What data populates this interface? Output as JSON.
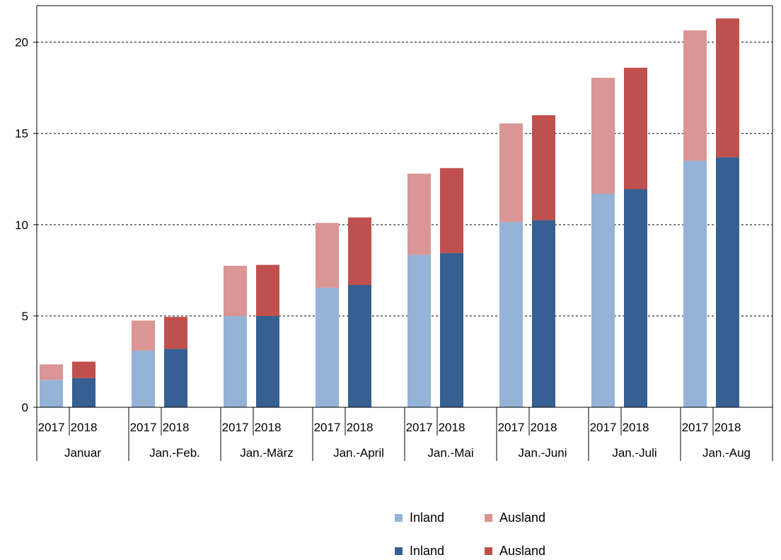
{
  "chart_data": {
    "type": "bar",
    "stacked": true,
    "groups": [
      "Januar",
      "Jan.-Feb.",
      "Jan.-März",
      "Jan.-April",
      "Jan.-Mai",
      "Jan.-Juni",
      "Jan.-Juli",
      "Jan.-Aug"
    ],
    "years": [
      "2017",
      "2018"
    ],
    "series": {
      "2017": {
        "Inland": [
          1.5,
          3.1,
          5.0,
          6.55,
          8.35,
          10.15,
          11.7,
          13.5
        ],
        "Ausland": [
          0.85,
          1.65,
          2.75,
          3.55,
          4.45,
          5.4,
          6.35,
          7.15
        ]
      },
      "2018": {
        "Inland": [
          1.6,
          3.2,
          5.0,
          6.7,
          8.45,
          10.25,
          11.95,
          13.7
        ],
        "Ausland": [
          0.9,
          1.75,
          2.8,
          3.7,
          4.65,
          5.75,
          6.65,
          7.6
        ]
      }
    },
    "ylim": [
      0,
      22
    ],
    "yticks": [
      0,
      5,
      10,
      15,
      20
    ],
    "grid": "horizontal dashed",
    "legend_position": "bottom",
    "colors": {
      "2017_Inland": "#95b3d7",
      "2017_Ausland": "#d99694",
      "2018_Inland": "#366092",
      "2018_Ausland": "#c0504d"
    }
  },
  "legend": {
    "row1": [
      {
        "label": "Inland",
        "color": "#95b3d7"
      },
      {
        "label": "Ausland",
        "color": "#d99694"
      }
    ],
    "row2": [
      {
        "label": "Inland",
        "color": "#366092"
      },
      {
        "label": "Ausland",
        "color": "#c0504d"
      }
    ]
  }
}
